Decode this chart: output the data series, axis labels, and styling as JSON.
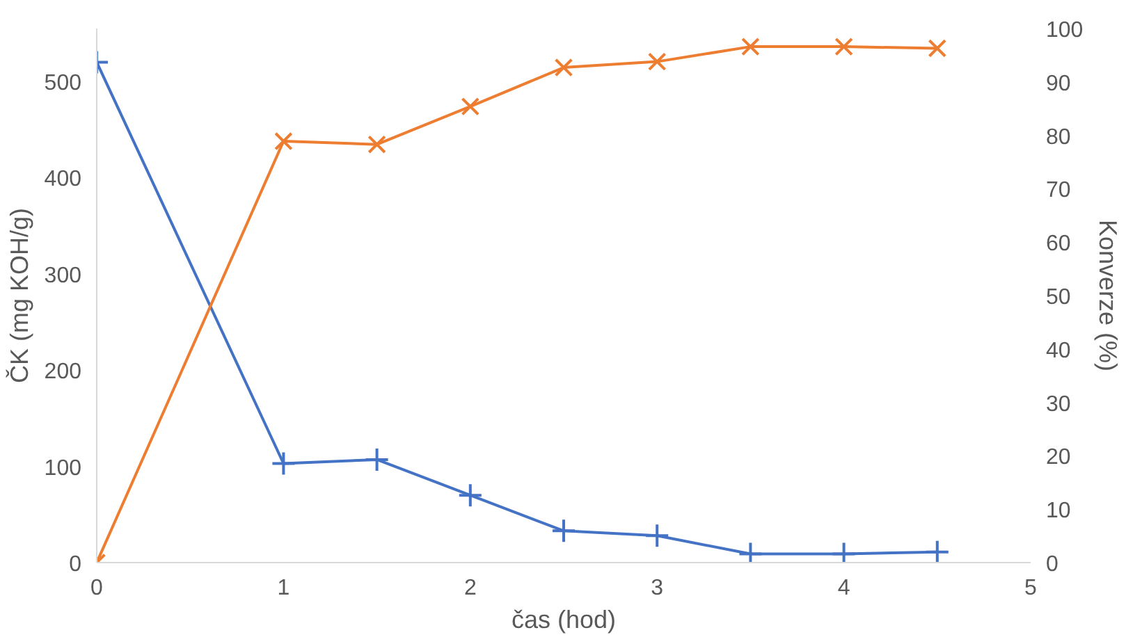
{
  "chart_data": {
    "type": "line",
    "xlabel": "čas (hod)",
    "ylabel": "ČK (mg KOH/g)",
    "y2label": "Konverze (%)",
    "xlim": [
      0,
      5
    ],
    "xticks": [
      0,
      1,
      2,
      3,
      4,
      5
    ],
    "ylim": [
      0,
      555
    ],
    "yticks": [
      0,
      100,
      200,
      300,
      400,
      500
    ],
    "y2lim": [
      0,
      100
    ],
    "y2ticks": [
      0,
      10,
      20,
      30,
      40,
      50,
      60,
      70,
      80,
      90,
      100
    ],
    "grid": false,
    "series": [
      {
        "color": "#4472c4",
        "marker": "cross",
        "x": [
          0,
          1,
          1.5,
          2,
          2.5,
          3,
          3.5,
          4,
          4.5
        ],
        "values": [
          520,
          103,
          107,
          70,
          33,
          28,
          9,
          9,
          11
        ]
      },
      {
        "color": "#ed7d31",
        "marker": "x",
        "axis": "y2",
        "x": [
          0,
          1,
          1.5,
          2,
          2.5,
          3,
          3.5,
          4,
          4.5
        ],
        "values": [
          0,
          78.9,
          78.3,
          85.4,
          92.7,
          93.8,
          96.6,
          96.6,
          96.3
        ]
      }
    ]
  }
}
